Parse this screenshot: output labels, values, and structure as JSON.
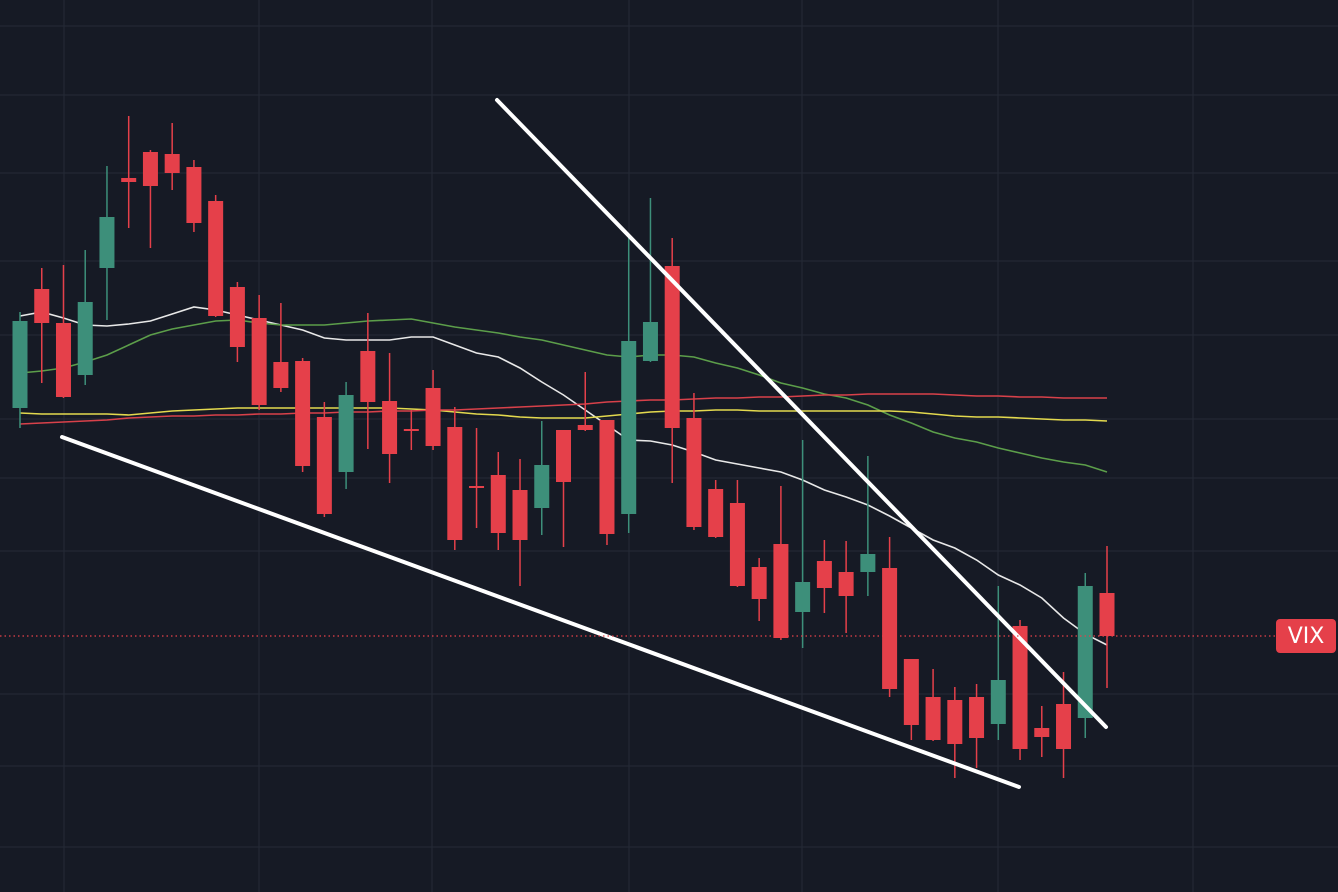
{
  "chart_data": {
    "type": "candlestick",
    "ylim": [
      0,
      89.2
    ],
    "up_color": "#3d8f7a",
    "down_color": "#e5404a",
    "open": [
      48.4,
      60.3,
      56.9,
      51.7,
      62.4,
      71.4,
      74.0,
      73.8,
      72.5,
      69.1,
      60.5,
      57.4,
      53.0,
      53.1,
      47.5,
      42.0,
      54.1,
      49.1,
      46.3,
      50.4,
      46.5,
      40.6,
      41.7,
      40.2,
      38.4,
      46.2,
      46.7,
      47.2,
      37.8,
      53.1,
      62.6,
      47.4,
      40.3,
      38.9,
      32.5,
      34.8,
      28.0,
      33.1,
      32.0,
      32.0,
      32.4,
      23.3,
      19.5,
      19.2,
      19.5,
      16.8,
      26.6,
      16.4,
      18.8,
      17.4,
      29.9
    ],
    "high": [
      58.0,
      62.4,
      62.7,
      64.2,
      72.6,
      77.6,
      74.2,
      76.9,
      73.2,
      69.7,
      61.0,
      59.7,
      58.9,
      53.4,
      49.0,
      51.0,
      57.9,
      53.9,
      48.2,
      52.2,
      48.5,
      46.4,
      44.0,
      43.3,
      47.1,
      46.2,
      52.0,
      47.2,
      65.6,
      69.4,
      65.4,
      49.9,
      41.2,
      41.2,
      33.4,
      40.6,
      45.2,
      35.2,
      35.1,
      43.6,
      35.5,
      23.3,
      22.3,
      20.5,
      20.8,
      30.6,
      27.2,
      18.6,
      22.0,
      31.9,
      34.6
    ],
    "low": [
      46.4,
      50.9,
      49.4,
      50.7,
      57.2,
      66.4,
      64.4,
      70.2,
      66.0,
      57.5,
      53.0,
      48.2,
      50.0,
      42.0,
      37.5,
      40.3,
      44.3,
      40.9,
      44.2,
      44.2,
      34.2,
      36.4,
      34.2,
      30.6,
      35.7,
      34.5,
      46.1,
      34.7,
      35.9,
      53.0,
      40.9,
      36.2,
      35.4,
      30.5,
      27.1,
      25.2,
      24.4,
      27.9,
      25.9,
      29.6,
      19.5,
      15.2,
      15.1,
      11.4,
      12.4,
      15.2,
      13.2,
      13.5,
      11.4,
      15.4,
      20.4
    ],
    "close": [
      57.1,
      56.9,
      49.5,
      59.0,
      67.5,
      71.0,
      70.6,
      71.9,
      66.9,
      57.6,
      54.5,
      48.7,
      50.4,
      42.6,
      37.8,
      49.7,
      49.0,
      43.8,
      46.1,
      44.6,
      35.2,
      40.4,
      35.9,
      35.2,
      42.7,
      41.0,
      46.2,
      35.8,
      55.1,
      57.0,
      46.4,
      36.5,
      35.5,
      30.6,
      29.3,
      25.4,
      31.0,
      30.4,
      29.6,
      33.8,
      20.3,
      16.7,
      15.2,
      14.8,
      15.4,
      21.2,
      14.3,
      15.5,
      14.3,
      30.6,
      25.6
    ],
    "series": [
      {
        "color": "#e8e8e8",
        "values": [
          57.6,
          58.0,
          57.4,
          56.7,
          56.6,
          56.8,
          57.1,
          57.8,
          58.5,
          58.2,
          57.7,
          57.2,
          56.7,
          56.2,
          55.4,
          55.2,
          55.2,
          55.2,
          55.5,
          55.5,
          54.7,
          53.9,
          53.5,
          52.4,
          51.0,
          49.7,
          48.2,
          46.7,
          45.2,
          45.1,
          44.7,
          44.0,
          43.2,
          42.8,
          42.4,
          42.0,
          41.2,
          40.2,
          39.5,
          38.7,
          37.6,
          36.4,
          35.2,
          34.4,
          33.2,
          31.7,
          30.7,
          29.4,
          27.4,
          25.8,
          24.7
        ]
      },
      {
        "color": "#5c9e4a",
        "values": [
          51.9,
          52.1,
          52.4,
          53.0,
          53.7,
          54.7,
          55.7,
          56.3,
          56.7,
          57.1,
          57.2,
          56.9,
          56.7,
          56.7,
          56.7,
          56.9,
          57.1,
          57.2,
          57.3,
          56.9,
          56.5,
          56.2,
          55.9,
          55.5,
          55.2,
          54.7,
          54.2,
          53.7,
          53.5,
          53.7,
          53.7,
          53.5,
          52.9,
          52.4,
          51.7,
          50.9,
          50.4,
          49.8,
          49.4,
          48.7,
          47.7,
          46.9,
          46.0,
          45.4,
          45.0,
          44.4,
          43.9,
          43.4,
          43.0,
          42.7,
          42.0
        ]
      },
      {
        "color": "#e3d94e",
        "values": [
          47.9,
          47.8,
          47.8,
          47.8,
          47.8,
          47.7,
          47.9,
          48.1,
          48.2,
          48.3,
          48.4,
          48.4,
          48.4,
          48.4,
          48.4,
          48.4,
          48.4,
          48.4,
          48.3,
          48.2,
          48.0,
          47.8,
          47.7,
          47.5,
          47.4,
          47.4,
          47.4,
          47.6,
          47.8,
          48.0,
          48.1,
          48.1,
          48.2,
          48.2,
          48.1,
          48.1,
          48.1,
          48.1,
          48.1,
          48.1,
          48.1,
          48.0,
          47.8,
          47.6,
          47.5,
          47.5,
          47.4,
          47.3,
          47.2,
          47.2,
          47.1
        ]
      },
      {
        "color": "#d8414a",
        "values": [
          46.8,
          46.9,
          47.0,
          47.1,
          47.2,
          47.4,
          47.5,
          47.6,
          47.6,
          47.7,
          47.7,
          47.8,
          47.8,
          47.9,
          47.9,
          48.0,
          48.0,
          48.1,
          48.1,
          48.2,
          48.2,
          48.3,
          48.4,
          48.5,
          48.6,
          48.7,
          48.8,
          49.0,
          49.1,
          49.2,
          49.2,
          49.3,
          49.4,
          49.4,
          49.5,
          49.5,
          49.6,
          49.7,
          49.7,
          49.8,
          49.8,
          49.8,
          49.8,
          49.7,
          49.6,
          49.6,
          49.5,
          49.5,
          49.4,
          49.4,
          49.4
        ]
      }
    ],
    "price_line": {
      "value": 25.6,
      "label": "VIX",
      "color": "#e5404a"
    }
  }
}
